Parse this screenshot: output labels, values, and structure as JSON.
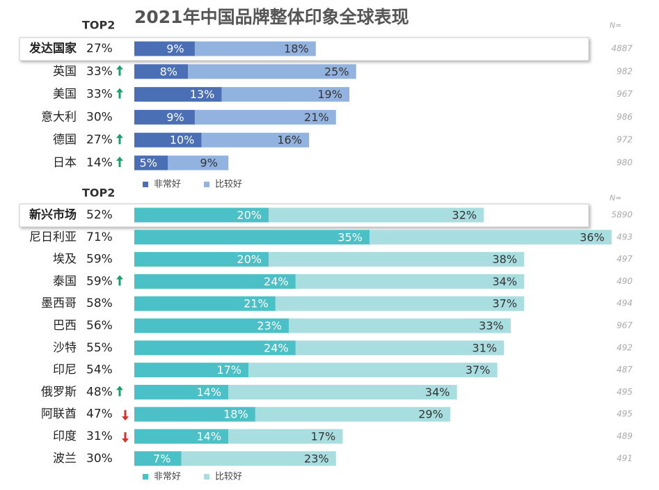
{
  "chart_data": [
    {
      "type": "bar",
      "orientation": "horizontal",
      "stacked": true,
      "title": "2021年中国品牌整体印象全球表现",
      "total_label": "TOP2",
      "n_label": "N=",
      "categories": [
        "发达国家",
        "英国",
        "美国",
        "意大利",
        "德国",
        "日本"
      ],
      "totals": [
        27,
        33,
        33,
        30,
        27,
        14
      ],
      "total_labels": [
        "27%",
        "33%",
        "33%",
        "30%",
        "27%",
        "14%"
      ],
      "trend": [
        null,
        "up",
        "up",
        null,
        "up",
        "up"
      ],
      "n": [
        4887,
        982,
        967,
        986,
        972,
        980
      ],
      "series": [
        {
          "name": "非常好",
          "color": "#4a6fb5",
          "values": [
            9,
            8,
            13,
            9,
            10,
            5
          ],
          "value_labels": [
            "9%",
            "8%",
            "13%",
            "9%",
            "10%",
            "5%"
          ]
        },
        {
          "name": "比较好",
          "color": "#92b3e0",
          "values": [
            18,
            25,
            19,
            21,
            16,
            9
          ],
          "value_labels": [
            "18%",
            "25%",
            "19%",
            "21%",
            "16%",
            "9%"
          ]
        }
      ]
    },
    {
      "type": "bar",
      "orientation": "horizontal",
      "stacked": true,
      "total_label": "TOP2",
      "n_label": "N=",
      "categories": [
        "新兴市场",
        "尼日利亚",
        "埃及",
        "泰国",
        "墨西哥",
        "巴西",
        "沙特",
        "印尼",
        "俄罗斯",
        "阿联酋",
        "印度",
        "波兰"
      ],
      "totals": [
        52,
        71,
        59,
        59,
        58,
        56,
        55,
        54,
        48,
        47,
        31,
        30
      ],
      "total_labels": [
        "52%",
        "71%",
        "59%",
        "59%",
        "58%",
        "56%",
        "55%",
        "54%",
        "48%",
        "47%",
        "31%",
        "30%"
      ],
      "trend": [
        null,
        null,
        null,
        "up",
        null,
        null,
        null,
        null,
        "up",
        "down",
        "down",
        null
      ],
      "n": [
        5890,
        493,
        497,
        490,
        494,
        967,
        492,
        487,
        495,
        495,
        489,
        491
      ],
      "series": [
        {
          "name": "非常好",
          "color": "#4cc0c7",
          "values": [
            20,
            35,
            20,
            24,
            21,
            23,
            24,
            17,
            14,
            18,
            14,
            7
          ],
          "value_labels": [
            "20%",
            "35%",
            "20%",
            "24%",
            "21%",
            "23%",
            "24%",
            "17%",
            "14%",
            "18%",
            "14%",
            "7%"
          ]
        },
        {
          "name": "比较好",
          "color": "#a9dee1",
          "values": [
            32,
            36,
            38,
            34,
            37,
            33,
            31,
            37,
            34,
            29,
            17,
            23
          ],
          "value_labels": [
            "32%",
            "36%",
            "38%",
            "34%",
            "37%",
            "33%",
            "31%",
            "37%",
            "34%",
            "29%",
            "17%",
            "23%"
          ]
        }
      ]
    }
  ]
}
